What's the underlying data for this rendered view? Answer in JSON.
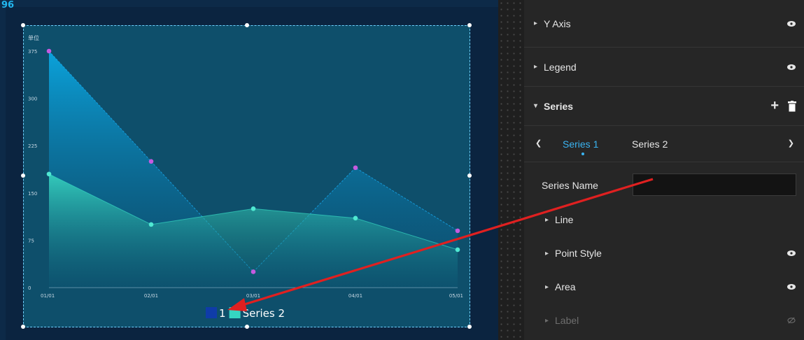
{
  "canvas": {
    "ruler_label": "96",
    "legend": [
      {
        "label": "1",
        "color": "#0f3ca8"
      },
      {
        "label": "Series 2",
        "color": "#35d6c2"
      }
    ]
  },
  "chart_data": {
    "type": "area",
    "ylabel": "单位",
    "ylim": [
      0,
      375
    ],
    "yticks": [
      "0",
      "75",
      "150",
      "225",
      "300",
      "375"
    ],
    "categories": [
      "01/01",
      "02/01",
      "03/01",
      "04/01",
      "05/01"
    ],
    "series": [
      {
        "name": "1",
        "values": [
          375,
          200,
          25,
          190,
          90
        ],
        "color": "#17b3ff",
        "point_color": "#c55be0"
      },
      {
        "name": "Series 2",
        "values": [
          180,
          100,
          125,
          110,
          60
        ],
        "color": "#35d6c2",
        "point_color": "#4fe8d2"
      }
    ]
  },
  "panel": {
    "sections": {
      "y_axis": "Y Axis",
      "legend": "Legend",
      "series": "Series",
      "line": "Line",
      "point_style": "Point Style",
      "area": "Area",
      "label": "Label"
    },
    "tabs": [
      "Series 1",
      "Series 2"
    ],
    "series_name_label": "Series Name",
    "series_name_value": "",
    "accent_color": "#3ab4f2"
  },
  "annotation": {
    "arrow_color": "#e02020"
  }
}
